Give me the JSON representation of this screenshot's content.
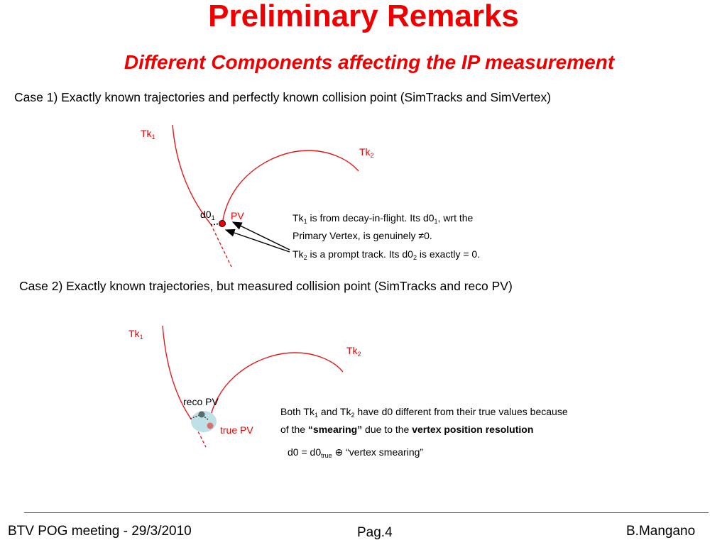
{
  "slide": {
    "title": "Preliminary Remarks",
    "subtitle": "Different Components affecting the IP measurement"
  },
  "case1": {
    "heading": "Case 1) Exactly known trajectories and perfectly known collision point (SimTracks and SimVertex)",
    "tk1": "Tk",
    "tk1_sub": "1",
    "tk2": "Tk",
    "tk2_sub": "2",
    "d0": "d0",
    "d0_sub": "1",
    "pv": "PV",
    "note1_a": "Tk",
    "note1_a_sub": "1",
    "note1_b": " is from decay-in-flight. Its d0",
    "note1_b_sub": "1",
    "note1_c": ", wrt the",
    "note1_line2": "Primary Vertex, is genuinely ≠0.",
    "note2_a": "Tk",
    "note2_a_sub": "2",
    "note2_b": " is a prompt track. Its d0",
    "note2_b_sub": "2",
    "note2_c": " is exactly = 0."
  },
  "case2": {
    "heading": "Case 2) Exactly known trajectories, but measured collision point (SimTracks and reco PV)",
    "tk1": "Tk",
    "tk1_sub": "1",
    "tk2": "Tk",
    "tk2_sub": "2",
    "reco_pv": "reco PV",
    "true_pv": "true PV",
    "note_a": "Both Tk",
    "note_a_sub": "1",
    "note_b": " and Tk",
    "note_b_sub": "2",
    "note_c": " have d0 different from their true values because",
    "note_line2_a": "of the ",
    "note_line2_b": "“smearing”",
    "note_line2_c": " due to the ",
    "note_line2_d": "vertex position resolution",
    "formula_a": "d0 =  d0",
    "formula_sub": "true",
    "formula_b": " ⊕ “vertex smearing”"
  },
  "footer": {
    "left": "BTV POG meeting - 29/3/2010",
    "center": "Pag.4",
    "right": "B.Mangano"
  },
  "colors": {
    "accent": "#ee0000",
    "track": "#e31a1a",
    "reco_vertex": "#5a6b6b",
    "true_vertex": "#d9706a",
    "smear_blob": "#bfe0e6"
  }
}
